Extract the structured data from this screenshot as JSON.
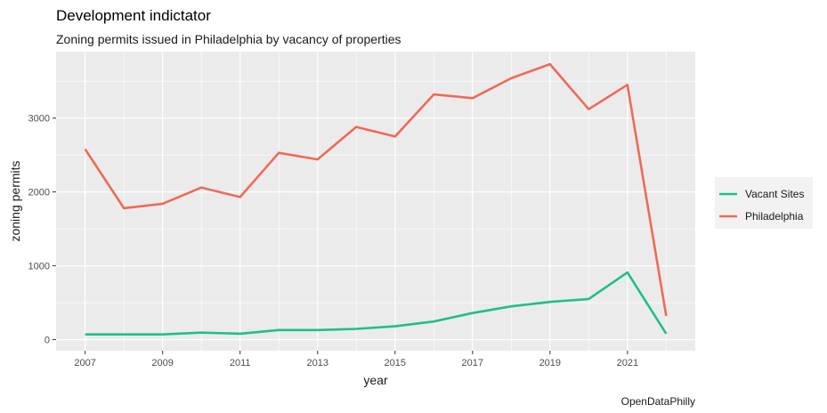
{
  "chart_data": {
    "type": "line",
    "title": "Development indictator",
    "subtitle": "Zoning permits issued in Philadelphia by vacancy of properties",
    "xlabel": "year",
    "ylabel": "zoning permits",
    "caption": "OpenDataPhilly",
    "x": [
      2007,
      2008,
      2009,
      2010,
      2011,
      2012,
      2013,
      2014,
      2015,
      2016,
      2017,
      2018,
      2019,
      2020,
      2021,
      2022
    ],
    "x_ticks": [
      "2007",
      "2009",
      "2011",
      "2013",
      "2015",
      "2017",
      "2019",
      "2021"
    ],
    "y_ticks": [
      "0",
      "1000",
      "2000",
      "3000"
    ],
    "xlim": [
      2006.25,
      2022.75
    ],
    "ylim": [
      -150,
      3900
    ],
    "grid": true,
    "legend_position": "right",
    "series": [
      {
        "name": "Vacant Sites",
        "color": "#1fbf8a",
        "values": [
          70,
          70,
          70,
          95,
          80,
          130,
          130,
          145,
          180,
          245,
          360,
          450,
          510,
          550,
          910,
          80
        ]
      },
      {
        "name": "Philadelphia",
        "color": "#ef6a57",
        "values": [
          2580,
          1780,
          1840,
          2060,
          1930,
          2530,
          2440,
          2880,
          2750,
          3320,
          3270,
          3540,
          3730,
          3120,
          3450,
          320
        ]
      }
    ]
  }
}
